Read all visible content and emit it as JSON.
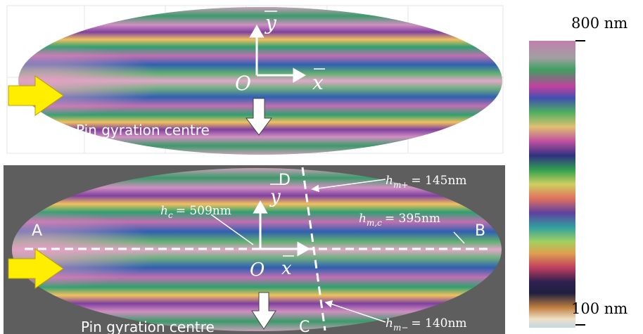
{
  "top_panel": {
    "y_axis": "y",
    "x_axis": "x",
    "origin": "O",
    "caption": "Pin gyration centre"
  },
  "bottom_panel": {
    "y_axis": "y",
    "x_axis": "x",
    "origin": "O",
    "caption": "Pin gyration centre",
    "points": {
      "a": "A",
      "b": "B",
      "c": "C",
      "d": "D"
    },
    "annotations": [
      {
        "symbol": "h",
        "subscript": "c",
        "value": "= 509nm"
      },
      {
        "symbol": "h",
        "subscript": "m+",
        "value": "= 145nm"
      },
      {
        "symbol": "h",
        "subscript": "m,c",
        "value": "= 395nm"
      },
      {
        "symbol": "h",
        "subscript": "m−",
        "value": "= 140nm"
      }
    ]
  },
  "colorbar": {
    "max_label": "800 nm",
    "min_label": "100 nm"
  }
}
